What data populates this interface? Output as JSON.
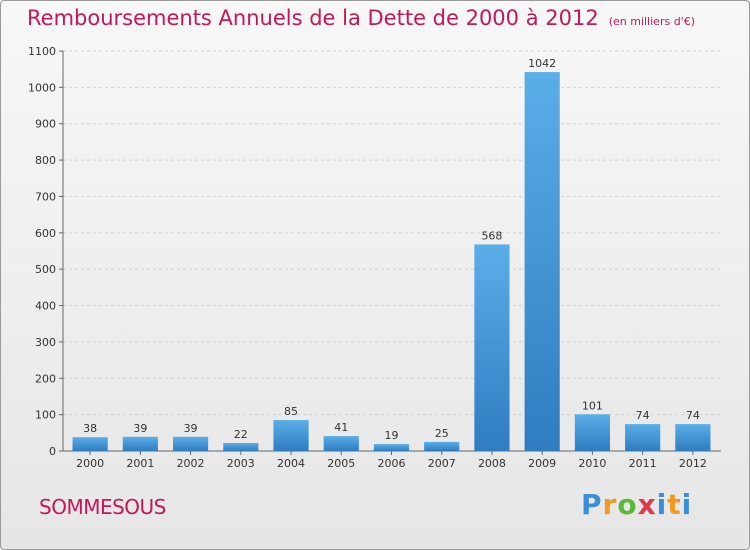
{
  "chart_data": {
    "type": "bar",
    "title": "Remboursements Annuels de la Dette de 2000 à 2012",
    "unit": "(en milliers d'€)",
    "categories": [
      "2000",
      "2001",
      "2002",
      "2003",
      "2004",
      "2005",
      "2006",
      "2007",
      "2008",
      "2009",
      "2010",
      "2011",
      "2012"
    ],
    "values": [
      38,
      39,
      39,
      22,
      85,
      41,
      19,
      25,
      568,
      1042,
      101,
      74,
      74
    ],
    "ylim": [
      0,
      1100
    ],
    "yticks": [
      0,
      100,
      200,
      300,
      400,
      500,
      600,
      700,
      800,
      900,
      1000,
      1100
    ],
    "grid": true,
    "bar_color": "#3a8fd8"
  },
  "footer": {
    "commune": "SOMMESOUS",
    "logo": [
      "P",
      "r",
      "o",
      "x",
      "i",
      "t",
      "i"
    ]
  }
}
